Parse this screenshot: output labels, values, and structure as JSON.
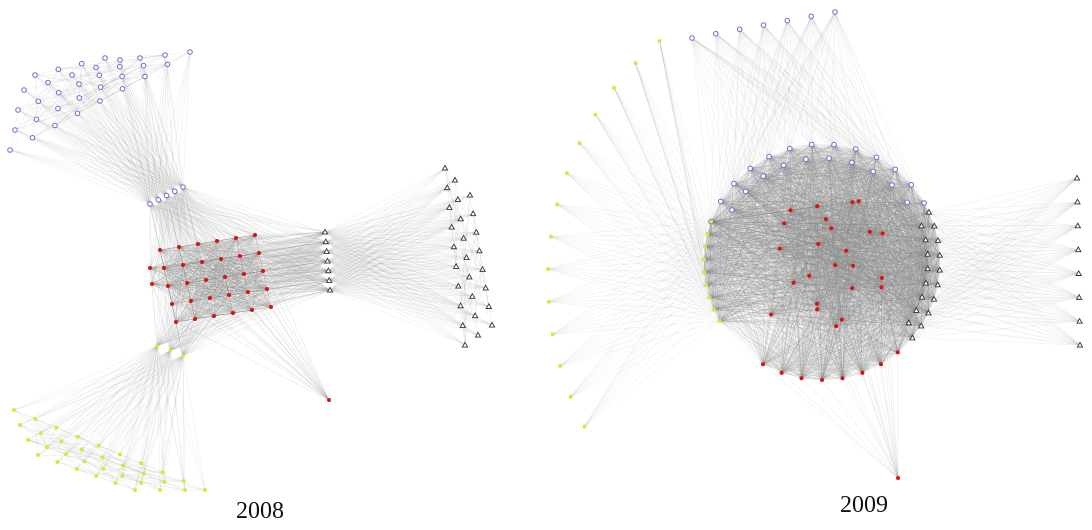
{
  "panels": [
    {
      "id": "2008",
      "caption": "2008"
    },
    {
      "id": "2009",
      "caption": "2009"
    }
  ],
  "node_groups": [
    {
      "name": "group-blue",
      "color": "#6b6bd6",
      "marker": "circle"
    },
    {
      "name": "group-red",
      "color": "#e01010",
      "marker": "dot"
    },
    {
      "name": "group-black",
      "color": "#333333",
      "marker": "triangle"
    },
    {
      "name": "group-yellow",
      "color": "#d8e83a",
      "marker": "dot"
    }
  ],
  "colors": {
    "edge": "#8a8a8a",
    "background": "#ffffff"
  }
}
